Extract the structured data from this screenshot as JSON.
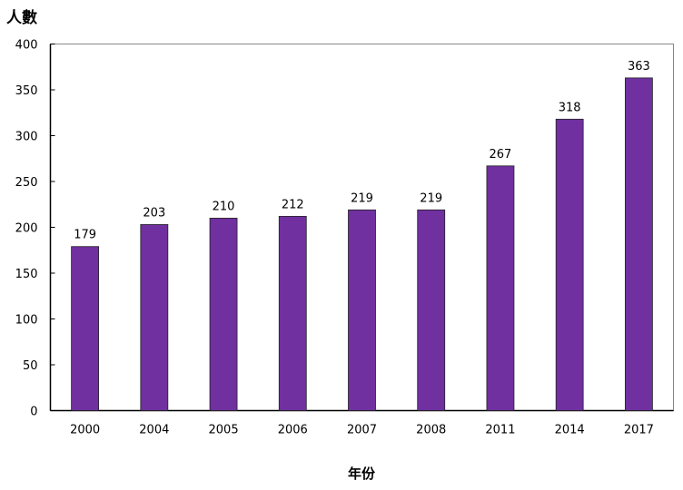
{
  "chart_data": {
    "type": "bar",
    "title": "",
    "xlabel": "年份",
    "ylabel": "人數",
    "categories": [
      "2000",
      "2004",
      "2005",
      "2006",
      "2007",
      "2008",
      "2011",
      "2014",
      "2017"
    ],
    "values": [
      179,
      203,
      210,
      212,
      219,
      219,
      267,
      318,
      363
    ],
    "data_labels": [
      "179",
      "203",
      "210",
      "212",
      "219",
      "219",
      "267",
      "318",
      "363"
    ],
    "ylim": [
      0,
      400
    ],
    "yticks": [
      "0",
      "50",
      "100",
      "150",
      "200",
      "250",
      "300",
      "350",
      "400"
    ],
    "grid": false,
    "legend": "none",
    "bar_color": "#7030A0"
  }
}
